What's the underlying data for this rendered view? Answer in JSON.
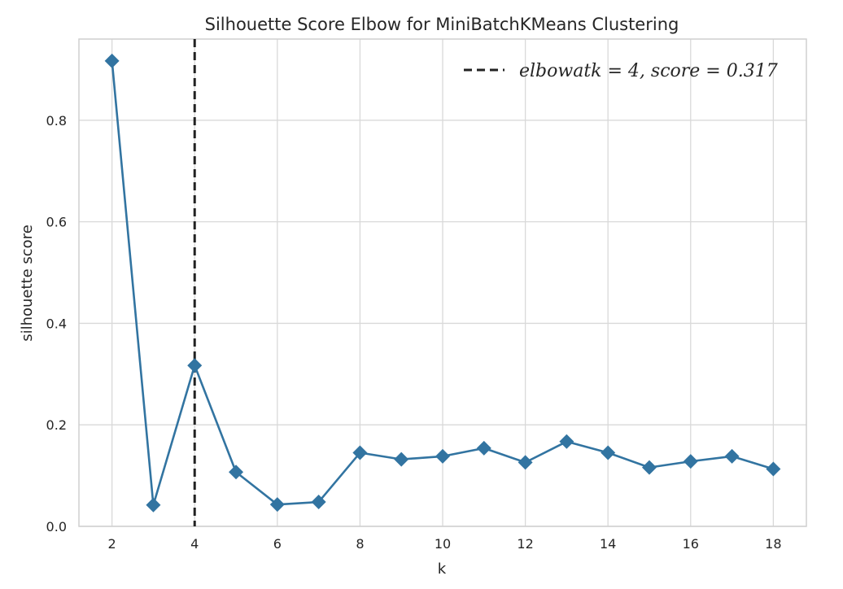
{
  "chart_data": {
    "type": "line",
    "title": "Silhouette Score Elbow for MiniBatchKMeans Clustering",
    "xlabel": "k",
    "ylabel": "silhouette score",
    "x": [
      2,
      3,
      4,
      5,
      6,
      7,
      8,
      9,
      10,
      11,
      12,
      13,
      14,
      15,
      16,
      17,
      18
    ],
    "series": [
      {
        "values": [
          0.917,
          0.042,
          0.317,
          0.107,
          0.043,
          0.048,
          0.145,
          0.132,
          0.138,
          0.154,
          0.126,
          0.167,
          0.145,
          0.116,
          0.128,
          0.138,
          0.113
        ]
      }
    ],
    "xlim": [
      1.2,
      18.8
    ],
    "ylim": [
      0.0,
      0.96
    ],
    "xticks": [
      "2",
      "4",
      "6",
      "8",
      "10",
      "12",
      "14",
      "16",
      "18"
    ],
    "yticks": [
      "0.0",
      "0.2",
      "0.4",
      "0.6",
      "0.8"
    ],
    "elbow": {
      "k": 4,
      "score": 0.317,
      "label": "elbowatk = 4, score = 0.317"
    },
    "grid": true,
    "legend_position": "top-right",
    "colors": {
      "line": "#3274a1",
      "elbow": "#222222",
      "grid": "#d9d9d9",
      "frame": "#cfcfcf"
    }
  }
}
